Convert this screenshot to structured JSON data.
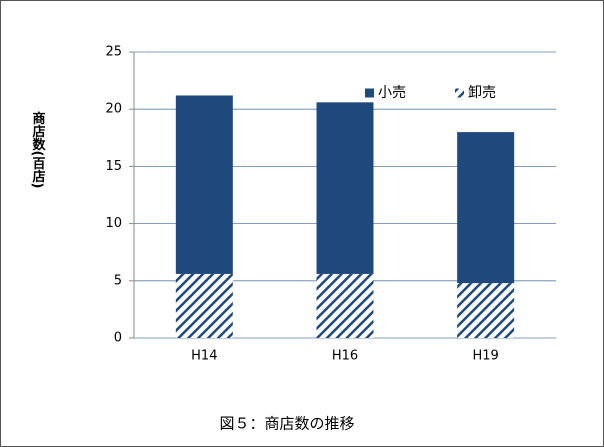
{
  "chart_data": {
    "type": "stacked_bar",
    "title": "図５：商店数の推移",
    "y_label": "商店数(百店)",
    "categories": [
      "H14",
      "H16",
      "H19"
    ],
    "series": [
      {
        "name": "卸売",
        "color": "#1f497d",
        "pattern": "hatch",
        "values": [
          5.6,
          5.6,
          4.8
        ]
      },
      {
        "name": "小売",
        "color": "#1f497d",
        "pattern": "solid",
        "values": [
          15.6,
          15.0,
          13.2
        ]
      }
    ],
    "ylim": [
      0,
      25
    ],
    "yticks": [
      0,
      5,
      10,
      15,
      20,
      25
    ],
    "grid": true,
    "legend": "top-right"
  }
}
